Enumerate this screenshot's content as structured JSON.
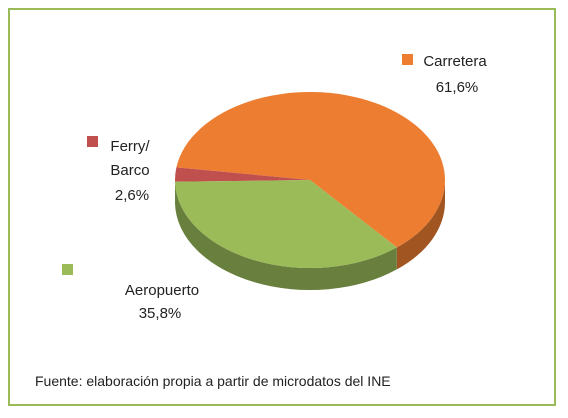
{
  "chart_data": {
    "type": "pie",
    "categories": [
      "Carretera",
      "Ferry/\nBarco",
      "Aeropuerto"
    ],
    "values": [
      61.6,
      2.6,
      35.8
    ],
    "value_labels": [
      "61,6%",
      "2,6%",
      "35,8%"
    ],
    "colors": [
      "#ed7d31",
      "#c0504d",
      "#9bbb59"
    ],
    "source": "Fuente: elaboración propia a partir de microdatos del INE"
  }
}
